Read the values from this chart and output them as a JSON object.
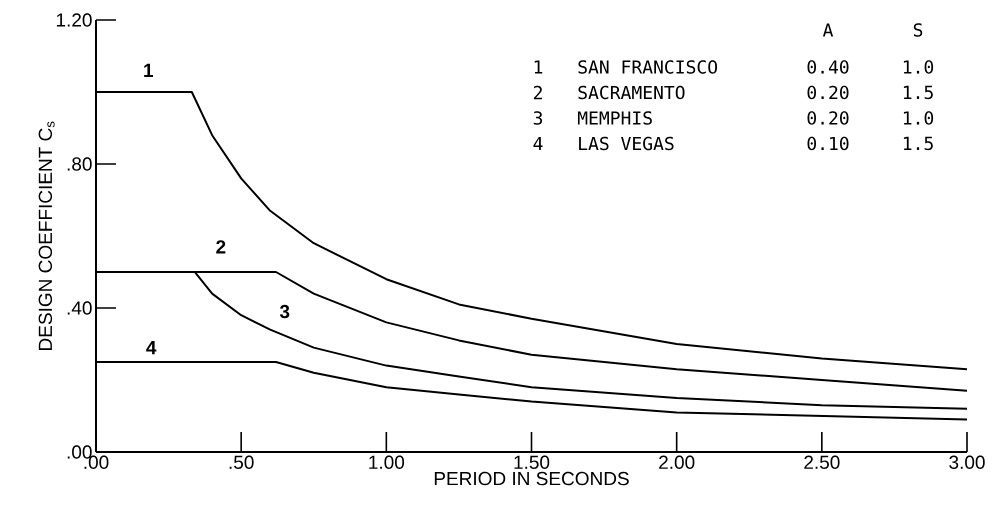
{
  "chart_data": {
    "type": "line",
    "xlabel": "PERIOD IN SECONDS",
    "ylabel": "DESIGN COEFFICIENT C$_{s}$",
    "xlim": [
      0,
      3.0
    ],
    "ylim": [
      0,
      1.2
    ],
    "xticks": [
      {
        "value": 0,
        "label": ".00"
      },
      {
        "value": 0.5,
        "label": ".50"
      },
      {
        "value": 1.0,
        "label": "1.00"
      },
      {
        "value": 1.5,
        "label": "1.50"
      },
      {
        "value": 2.0,
        "label": "2.00"
      },
      {
        "value": 2.5,
        "label": "2.50"
      },
      {
        "value": 3.0,
        "label": "3.00"
      }
    ],
    "yticks": [
      {
        "value": 0,
        "label": ".00"
      },
      {
        "value": 0.4,
        "label": ".40"
      },
      {
        "value": 0.8,
        "label": ".80"
      },
      {
        "value": 1.2,
        "label": "1.20"
      }
    ],
    "grid": false,
    "legend": false,
    "marker": "none",
    "line_style": "solid",
    "series": [
      {
        "name": "1",
        "color": "#000000",
        "x": [
          0,
          0.33,
          0.4,
          0.5,
          0.6,
          0.75,
          1.0,
          1.25,
          1.5,
          2.0,
          2.5,
          3.0
        ],
        "values": [
          1.0,
          1.0,
          0.88,
          0.76,
          0.67,
          0.58,
          0.48,
          0.41,
          0.37,
          0.3,
          0.26,
          0.23
        ]
      },
      {
        "name": "2",
        "color": "#000000",
        "x": [
          0,
          0.62,
          0.75,
          1.0,
          1.25,
          1.5,
          2.0,
          2.5,
          3.0
        ],
        "values": [
          0.5,
          0.5,
          0.44,
          0.36,
          0.31,
          0.27,
          0.23,
          0.2,
          0.17
        ]
      },
      {
        "name": "3",
        "color": "#000000",
        "x": [
          0,
          0.34,
          0.4,
          0.5,
          0.6,
          0.75,
          1.0,
          1.25,
          1.5,
          2.0,
          2.5,
          3.0
        ],
        "values": [
          0.5,
          0.5,
          0.44,
          0.38,
          0.34,
          0.29,
          0.24,
          0.21,
          0.18,
          0.15,
          0.13,
          0.12
        ]
      },
      {
        "name": "4",
        "color": "#000000",
        "x": [
          0,
          0.62,
          0.75,
          1.0,
          1.25,
          1.5,
          2.0,
          2.5,
          3.0
        ],
        "values": [
          0.25,
          0.25,
          0.22,
          0.18,
          0.16,
          0.14,
          0.11,
          0.1,
          0.09
        ]
      }
    ],
    "annotations": [
      "A",
      "S",
      "1",
      "SAN FRANCISCO",
      "0.40",
      "1.0",
      "2",
      "SACRAMENTO",
      "0.20",
      "1.5",
      "3",
      "MEMPHIS",
      "0.20",
      "1.0",
      "4",
      "LAS VEGAS",
      "0.10",
      "1.5"
    ]
  }
}
